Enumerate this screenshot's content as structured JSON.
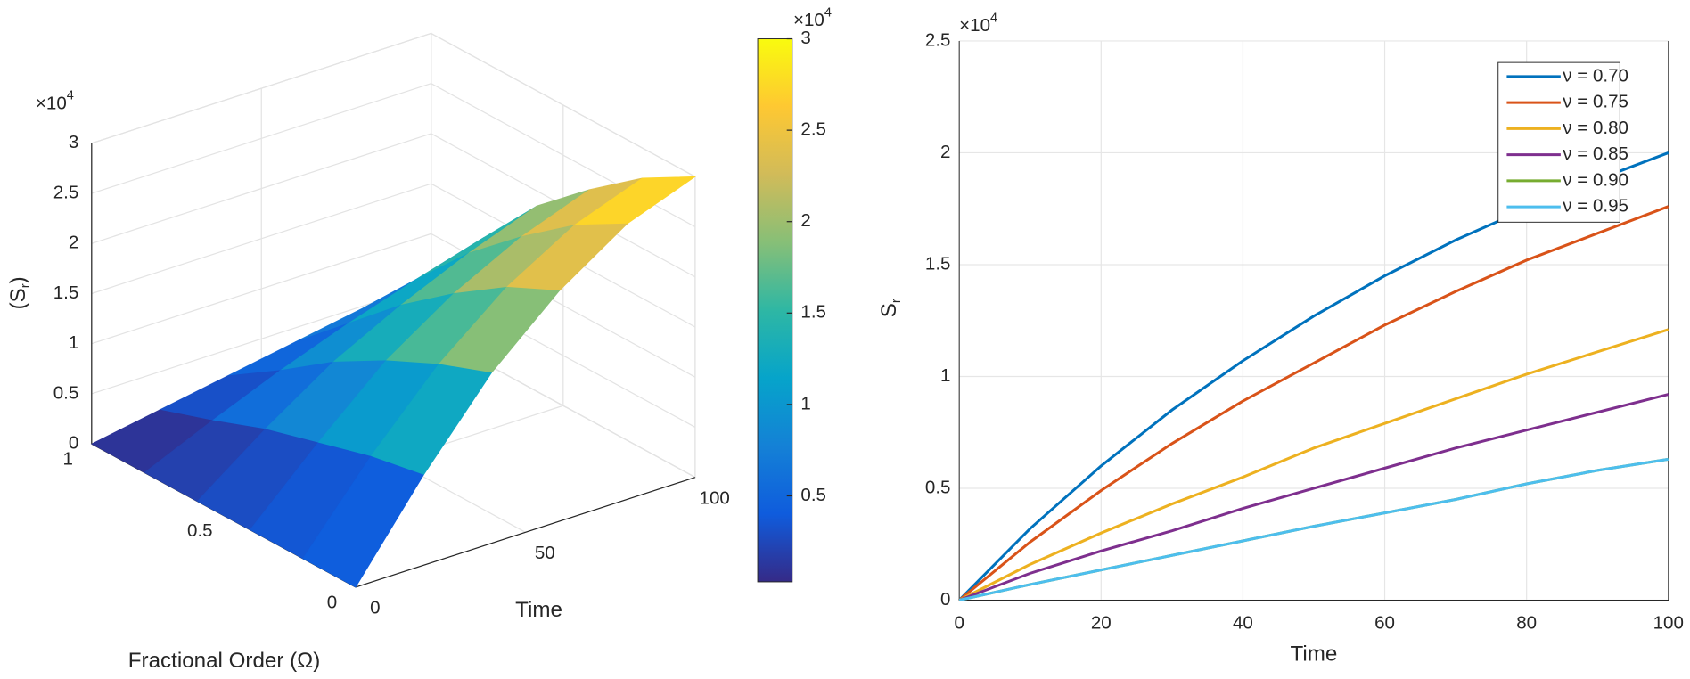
{
  "chart_data": [
    {
      "type": "surface",
      "xlabel": "Time",
      "ylabel": "Fractional Order (Ω)",
      "zlabel": {
        "before": "(S",
        "sub": "r",
        "after": ")"
      },
      "z_exponent": {
        "base": "×10",
        "power": "4"
      },
      "colorbar_exponent": {
        "base": "×10",
        "power": "4"
      },
      "x": [
        0,
        20,
        40,
        60,
        80,
        100
      ],
      "y": [
        0,
        0.2,
        0.4,
        0.6,
        0.8,
        1
      ],
      "z": [
        [
          0,
          9000,
          17000,
          23000,
          27500,
          30000
        ],
        [
          0,
          8000,
          15000,
          20500,
          24500,
          27000
        ],
        [
          0,
          6500,
          12500,
          17000,
          20500,
          23000
        ],
        [
          0,
          5000,
          9500,
          13000,
          16000,
          18500
        ],
        [
          0,
          3000,
          5800,
          8300,
          10500,
          12500
        ],
        [
          0,
          1200,
          2400,
          3600,
          4800,
          6000
        ]
      ],
      "xlim": [
        0,
        100
      ],
      "xticks": [
        0,
        50,
        100
      ],
      "ylim": [
        0,
        1
      ],
      "yticks": [
        0,
        0.5,
        1
      ],
      "zlim": [
        0,
        30000
      ],
      "zticks": [
        {
          "value": 0,
          "label": "0"
        },
        {
          "value": 5000,
          "label": "0.5"
        },
        {
          "value": 10000,
          "label": "1"
        },
        {
          "value": 15000,
          "label": "1.5"
        },
        {
          "value": 20000,
          "label": "2"
        },
        {
          "value": 25000,
          "label": "2.5"
        },
        {
          "value": 30000,
          "label": "3"
        }
      ],
      "clim": [
        300,
        30000
      ],
      "cticks": [
        {
          "value": 5000,
          "label": "0.5"
        },
        {
          "value": 10000,
          "label": "1"
        },
        {
          "value": 15000,
          "label": "1.5"
        },
        {
          "value": 20000,
          "label": "2"
        },
        {
          "value": 25000,
          "label": "2.5"
        },
        {
          "value": 30000,
          "label": "3"
        }
      ],
      "colormap": [
        "#352a87",
        "#0f5cdd",
        "#1481d6",
        "#06a4ca",
        "#2eb7a4",
        "#87bf77",
        "#d1bb59",
        "#fec832",
        "#f9fb0e"
      ],
      "grid": true
    },
    {
      "type": "line",
      "xlabel": "Time",
      "ylabel": {
        "main": "S",
        "sub": "r"
      },
      "y_exponent": {
        "base": "×10",
        "power": "4"
      },
      "x": [
        0,
        10,
        20,
        30,
        40,
        50,
        60,
        70,
        80,
        90,
        100
      ],
      "series": [
        {
          "name": "ν = 0.70",
          "color": "#0072bd",
          "values": [
            0,
            3200,
            6000,
            8500,
            10700,
            12700,
            14500,
            16100,
            17500,
            18800,
            20000
          ]
        },
        {
          "name": "ν = 0.75",
          "color": "#d95319",
          "values": [
            0,
            2600,
            4900,
            7000,
            8900,
            10600,
            12300,
            13800,
            15200,
            16400,
            17600
          ]
        },
        {
          "name": "ν = 0.80",
          "color": "#edb120",
          "values": [
            0,
            1600,
            3000,
            4300,
            5500,
            6800,
            7900,
            9000,
            10100,
            11100,
            12100
          ]
        },
        {
          "name": "ν = 0.85",
          "color": "#7e2f8e",
          "values": [
            0,
            1200,
            2200,
            3100,
            4100,
            5000,
            5900,
            6800,
            7600,
            8400,
            9200
          ]
        },
        {
          "name": "ν = 0.90",
          "color": "#77ac30",
          "values": [
            0,
            700,
            1350,
            2000,
            2650,
            3300,
            3900,
            4500,
            5200,
            5800,
            6300
          ]
        },
        {
          "name": "ν = 0.95",
          "color": "#4dbeee",
          "values": [
            0,
            700,
            1350,
            2000,
            2650,
            3300,
            3900,
            4500,
            5200,
            5800,
            6300
          ]
        }
      ],
      "xlim": [
        0,
        100
      ],
      "xticks": [
        0,
        20,
        40,
        60,
        80,
        100
      ],
      "ylim": [
        0,
        25000
      ],
      "yticks": [
        {
          "value": 0,
          "label": "0"
        },
        {
          "value": 5000,
          "label": "0.5"
        },
        {
          "value": 10000,
          "label": "1"
        },
        {
          "value": 15000,
          "label": "1.5"
        },
        {
          "value": 20000,
          "label": "2"
        },
        {
          "value": 25000,
          "label": "2.5"
        }
      ],
      "grid": true,
      "legend": "upper right"
    }
  ]
}
